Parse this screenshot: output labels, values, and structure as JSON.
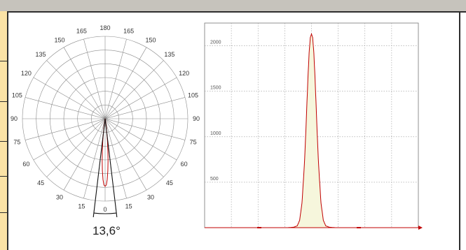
{
  "polar": {
    "angle_labels": [
      "180",
      "165",
      "165",
      "150",
      "150",
      "135",
      "135",
      "120",
      "120",
      "105",
      "105",
      "90",
      "90",
      "75",
      "75",
      "60",
      "60",
      "45",
      "45",
      "30",
      "30",
      "15",
      "15",
      "0"
    ],
    "beam_angle": "13,6°",
    "colors": {
      "grid": "#8a8a8a",
      "curve": "#c00000",
      "beam": "#111111"
    }
  },
  "chart_data": {
    "type": "line",
    "title": "",
    "xlabel": "",
    "ylabel": "",
    "y_ticks": [
      500,
      1000,
      1500,
      2000
    ],
    "ylim": [
      0,
      2250
    ],
    "xlim": [
      -90,
      90
    ],
    "grid": true,
    "series": [
      {
        "x": [
          -90,
          -40,
          -20,
          -15,
          -12,
          -10,
          -8,
          -6,
          -5,
          -4,
          -3,
          -2,
          -1,
          0,
          1,
          2,
          3,
          4,
          5,
          6,
          8,
          10,
          12,
          15,
          20,
          40,
          90
        ],
        "values": [
          0,
          0,
          0,
          5,
          20,
          80,
          270,
          690,
          980,
          1310,
          1640,
          1920,
          2090,
          2130,
          2090,
          1920,
          1640,
          1310,
          980,
          690,
          270,
          80,
          20,
          5,
          0,
          0,
          0
        ]
      }
    ],
    "colors": {
      "curve": "#c00000",
      "fill": "#f6f6dc",
      "grid": "#9a9a9a",
      "axis": "#555555"
    }
  }
}
